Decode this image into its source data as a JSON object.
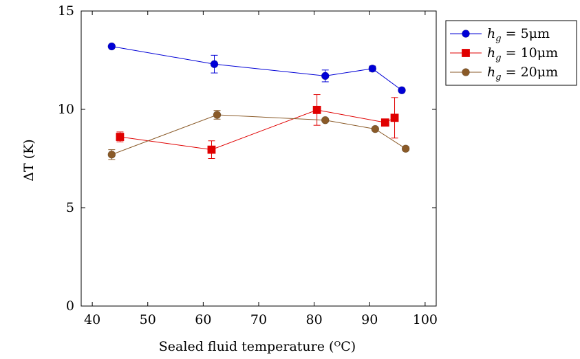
{
  "chart_data": {
    "type": "line",
    "xlabel": "Sealed fluid temperature (ᴼC)",
    "ylabel": "ΔT (K)",
    "xlim": [
      38,
      102
    ],
    "ylim": [
      0,
      15
    ],
    "xticks": [
      40,
      50,
      60,
      70,
      80,
      90,
      100
    ],
    "yticks": [
      0,
      5,
      10,
      15
    ],
    "grid": false,
    "legend_position": "outside-top-right",
    "series": [
      {
        "name": "h_g = 5μm",
        "label_parts": {
          "base": "h",
          "sub": "g",
          "rest": " = 5μm"
        },
        "color": "#0000d6",
        "marker": "circle",
        "points": [
          {
            "x": 43.5,
            "y": 13.2,
            "err": 0.05
          },
          {
            "x": 62.0,
            "y": 12.3,
            "err": 0.45
          },
          {
            "x": 82.0,
            "y": 11.7,
            "err": 0.3
          },
          {
            "x": 90.5,
            "y": 12.07,
            "err": 0.13
          },
          {
            "x": 95.8,
            "y": 10.97,
            "err": 0.05
          }
        ]
      },
      {
        "name": "h_g = 10μm",
        "label_parts": {
          "base": "h",
          "sub": "g",
          "rest": " = 10μm"
        },
        "color": "#e00000",
        "marker": "square",
        "points": [
          {
            "x": 45.0,
            "y": 8.6,
            "err": 0.25
          },
          {
            "x": 61.5,
            "y": 7.95,
            "err": 0.45
          },
          {
            "x": 80.5,
            "y": 9.97,
            "err": 0.78
          },
          {
            "x": 92.8,
            "y": 9.33,
            "err": 0.17
          },
          {
            "x": 94.5,
            "y": 9.57,
            "err": 1.03
          }
        ]
      },
      {
        "name": "h_g = 20μm",
        "label_parts": {
          "base": "h",
          "sub": "g",
          "rest": " = 20μm"
        },
        "color": "#8a5a28",
        "marker": "circle",
        "points": [
          {
            "x": 43.5,
            "y": 7.7,
            "err": 0.25
          },
          {
            "x": 62.5,
            "y": 9.72,
            "err": 0.22
          },
          {
            "x": 82.0,
            "y": 9.45,
            "err": 0.05
          },
          {
            "x": 91.0,
            "y": 9.0,
            "err": 0.05
          },
          {
            "x": 96.5,
            "y": 8.0,
            "err": 0.1
          }
        ]
      }
    ]
  }
}
